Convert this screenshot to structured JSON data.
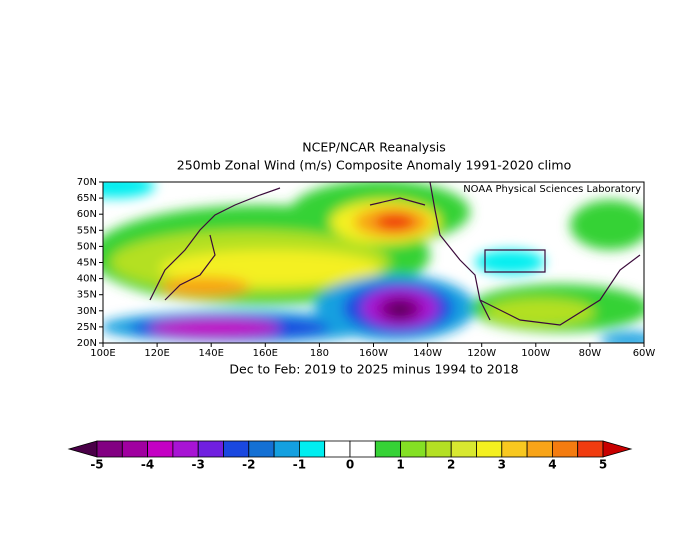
{
  "map": {
    "title": "NCEP/NCAR Reanalysis",
    "subtitle": "250mb Zonal Wind (m/s) Composite Anomaly 1991-2020 climo",
    "credit": "NOAA Physical Sciences Laboratory",
    "caption": "Dec to Feb: 2019 to 2025 minus 1994 to 2018",
    "lon_labels": [
      "100E",
      "120E",
      "140E",
      "160E",
      "180",
      "160W",
      "140W",
      "120W",
      "100W",
      "80W",
      "60W"
    ],
    "lat_labels": [
      "70N",
      "65N",
      "60N",
      "55N",
      "50N",
      "45N",
      "40N",
      "35N",
      "30N",
      "25N",
      "20N"
    ],
    "colorbar": {
      "under_color": "#4a0048",
      "over_color": "#c80000",
      "colors": [
        "#820082",
        "#a000a0",
        "#c400c4",
        "#a814d4",
        "#7020e0",
        "#1a48e0",
        "#1470d4",
        "#14a0e0",
        "#00eef0",
        "#ffffff",
        "#ffffff",
        "#36d236",
        "#84e024",
        "#b4e024",
        "#d8e830",
        "#f4f020",
        "#f8c820",
        "#f8a418",
        "#f47c10",
        "#f03c10"
      ],
      "labels": [
        -5,
        -4,
        -3,
        -2,
        -1,
        0,
        1,
        2,
        3,
        4,
        5
      ]
    }
  }
}
